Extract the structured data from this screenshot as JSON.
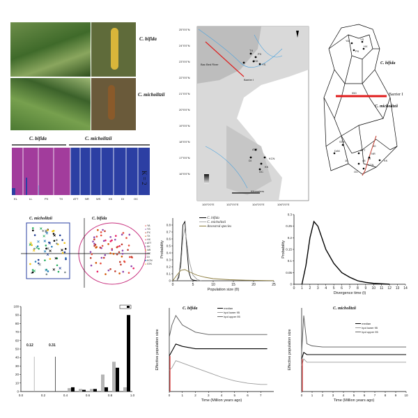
{
  "photos": {
    "label_bifida": "C. bifida",
    "label_micholitzii": "C. micholitzii"
  },
  "structure": {
    "header_bifida": "C. bifida",
    "header_micholitzii": "C. micholitzii",
    "k_label": "K = 2",
    "pops": [
      "EL",
      "LL",
      "PX",
      "TX",
      "ATT",
      "NR",
      "WS",
      "KK",
      "DI",
      "OC"
    ]
  },
  "map": {
    "feature_label": "Barrier I",
    "river_label": "Bac Bed River",
    "pop_labels": [
      "TX",
      "PX",
      "HX",
      "YS",
      "KK",
      "ATT",
      "DI",
      "OC",
      "KCN"
    ],
    "lat_ticks": [
      "25°0'0\"N",
      "24°0'0\"N",
      "23°0'0\"N",
      "22°0'0\"N",
      "21°0'0\"N",
      "20°0'0\"N",
      "19°0'0\"N",
      "18°0'0\"N",
      "17°0'0\"N",
      "16°0'0\"N"
    ],
    "lon_ticks": [
      "100°0'0\"E",
      "102°0'0\"E",
      "104°0'0\"E",
      "106°0'0\"E"
    ],
    "scale_label": "Kilometers"
  },
  "network": {
    "label_bifida": "C. bifida",
    "label_micholitzii": "C. micholitzii",
    "barrier_label": "Barrier I",
    "barrier_value": "950",
    "nodes": [
      "YA",
      "YS",
      "HX",
      "PX",
      "STK",
      "DAK",
      "ATT",
      "KCN",
      "KK",
      "OC",
      "NR",
      "DI",
      "10",
      "40",
      "48"
    ]
  },
  "pca": {
    "title_micholitzii": "C. micholitzii",
    "title_bifida": "C. bifida",
    "legend": [
      "YA",
      "YS",
      "PX",
      "TX",
      "HX",
      "ATT",
      "KK",
      "NR",
      "OC",
      "DI",
      "KCN",
      "STK"
    ]
  },
  "pop_size_chart": {
    "legend": [
      "C. bifida",
      "C. micholitzii",
      "Ancestral species"
    ],
    "xlabel": "Population size (θ)",
    "ylabel": "Probability"
  },
  "divergence_chart": {
    "xlabel": "Divergence time (t)",
    "ylabel": "Probability"
  },
  "hist_chart": {
    "annot_a": "0.12",
    "annot_b": "0.31"
  },
  "bsp_bifida": {
    "title": "C. bifida",
    "xlabel": "Time (Million years ago)",
    "ylabel": "Effective population size",
    "legend": [
      "median",
      "hpd lower 95",
      "hpd upper 95"
    ]
  },
  "bsp_micholitzii": {
    "title": "C. micholitzii",
    "xlabel": "Time (Million years ago)",
    "ylabel": "Effective population size",
    "legend": [
      "median",
      "hpd lower 95",
      "hpd upper 95"
    ]
  },
  "chart_data": [
    {
      "type": "line",
      "title": "",
      "xlabel": "Population size (θ)",
      "ylabel": "Probability",
      "xlim": [
        0,
        25
      ],
      "ylim": [
        0,
        0.9
      ],
      "xticks": [
        0,
        5,
        10,
        15,
        20,
        25
      ],
      "yticks": [
        0,
        0.1,
        0.2,
        0.3,
        0.4,
        0.5,
        0.6,
        0.7,
        0.8
      ],
      "series": [
        {
          "name": "C. bifida",
          "x": [
            1,
            1.5,
            2,
            2.5,
            3,
            3.5,
            4,
            4.5,
            5,
            6
          ],
          "y": [
            0,
            0.05,
            0.3,
            0.8,
            0.85,
            0.45,
            0.12,
            0.03,
            0.01,
            0
          ]
        },
        {
          "name": "C. micholitzii",
          "x": [
            1,
            2,
            2.5,
            3,
            3.5,
            4,
            5,
            6,
            7
          ],
          "y": [
            0,
            0.2,
            0.6,
            0.75,
            0.55,
            0.3,
            0.08,
            0.02,
            0
          ]
        },
        {
          "name": "Ancestral species",
          "x": [
            0,
            1,
            2,
            3,
            4,
            6,
            8,
            10,
            14,
            18,
            22,
            25
          ],
          "y": [
            0,
            0.08,
            0.15,
            0.16,
            0.13,
            0.08,
            0.05,
            0.03,
            0.015,
            0.008,
            0.004,
            0.002
          ]
        }
      ]
    },
    {
      "type": "line",
      "title": "",
      "xlabel": "Divergence time (t)",
      "ylabel": "Probability",
      "xlim": [
        0,
        14
      ],
      "ylim": [
        0,
        0.3
      ],
      "xticks": [
        0,
        1,
        2,
        3,
        4,
        5,
        6,
        7,
        8,
        9,
        10,
        11,
        12,
        13,
        14
      ],
      "yticks": [
        0,
        0.05,
        0.1,
        0.15,
        0.2,
        0.25,
        0.3
      ],
      "series": [
        {
          "name": "",
          "x": [
            1,
            1.5,
            2,
            2.5,
            3,
            3.5,
            4,
            5,
            6,
            7,
            8,
            9,
            10,
            11,
            12
          ],
          "y": [
            0,
            0.08,
            0.2,
            0.27,
            0.25,
            0.2,
            0.15,
            0.09,
            0.05,
            0.03,
            0.015,
            0.008,
            0.004,
            0.002,
            0
          ]
        }
      ]
    },
    {
      "type": "bar",
      "title": "",
      "xlim": [
        0,
        1
      ],
      "ylim": [
        0,
        100
      ],
      "xticks": [
        0,
        0.2,
        0.4,
        0.6,
        0.8,
        1.0
      ],
      "yticks": [
        0,
        10,
        20,
        30,
        40,
        50,
        60,
        70,
        80,
        90,
        100
      ],
      "categories": [
        0.45,
        0.55,
        0.65,
        0.75,
        0.85,
        0.95
      ],
      "series": [
        {
          "name": "",
          "values": [
            5,
            2,
            3,
            5,
            28,
            90
          ]
        },
        {
          "name": "",
          "values": [
            4,
            3,
            3,
            20,
            35,
            5
          ]
        }
      ]
    },
    {
      "type": "line",
      "title": "C. bifida",
      "xlabel": "Time (Million years ago)",
      "ylabel": "Effective population size",
      "xlim": [
        0,
        8
      ],
      "series": [
        {
          "name": "median",
          "x": [
            0,
            0.2,
            0.5,
            1,
            2,
            3,
            4,
            5,
            6,
            7,
            7.5
          ],
          "y": [
            1.5,
            1.7,
            2.0,
            1.9,
            1.8,
            1.8,
            1.8,
            1.8,
            1.8,
            1.8,
            1.8
          ]
        },
        {
          "name": "hpd lower 95",
          "x": [
            0,
            0.2,
            0.5,
            1,
            2,
            3,
            4,
            5,
            6,
            7,
            7.5
          ],
          "y": [
            0.9,
            1.0,
            1.3,
            1.2,
            1.0,
            0.8,
            0.6,
            0.45,
            0.35,
            0.3,
            0.3
          ]
        },
        {
          "name": "hpd upper 95",
          "x": [
            0,
            0.2,
            0.5,
            1,
            2,
            3,
            4,
            5,
            6,
            7,
            7.5
          ],
          "y": [
            2.3,
            2.8,
            3.2,
            2.8,
            2.5,
            2.4,
            2.4,
            2.4,
            2.4,
            2.4,
            2.4
          ]
        }
      ]
    },
    {
      "type": "line",
      "title": "C. micholitzii",
      "xlabel": "Time (Million years ago)",
      "ylabel": "Effective population size",
      "xlim": [
        0,
        10
      ],
      "xticks": [
        0,
        1,
        2,
        3,
        4,
        5,
        6,
        7,
        8,
        9,
        10
      ],
      "series": [
        {
          "name": "median",
          "x": [
            0,
            0.2,
            0.5,
            1,
            2,
            4,
            6,
            8,
            10
          ],
          "y": [
            1.5,
            1.8,
            1.7,
            1.7,
            1.7,
            1.7,
            1.7,
            1.7,
            1.7
          ]
        },
        {
          "name": "hpd lower 95",
          "x": [
            0,
            0.2,
            0.5,
            1,
            2,
            4,
            6,
            8,
            10
          ],
          "y": [
            1.2,
            1.5,
            1.35,
            1.35,
            1.35,
            1.35,
            1.35,
            1.35,
            1.35
          ]
        },
        {
          "name": "hpd upper 95",
          "x": [
            0,
            0.2,
            0.5,
            1,
            2,
            4,
            6,
            8,
            10
          ],
          "y": [
            1.8,
            3.5,
            2.2,
            2.1,
            2.05,
            2.05,
            2.05,
            2.05,
            2.05
          ]
        }
      ]
    }
  ]
}
